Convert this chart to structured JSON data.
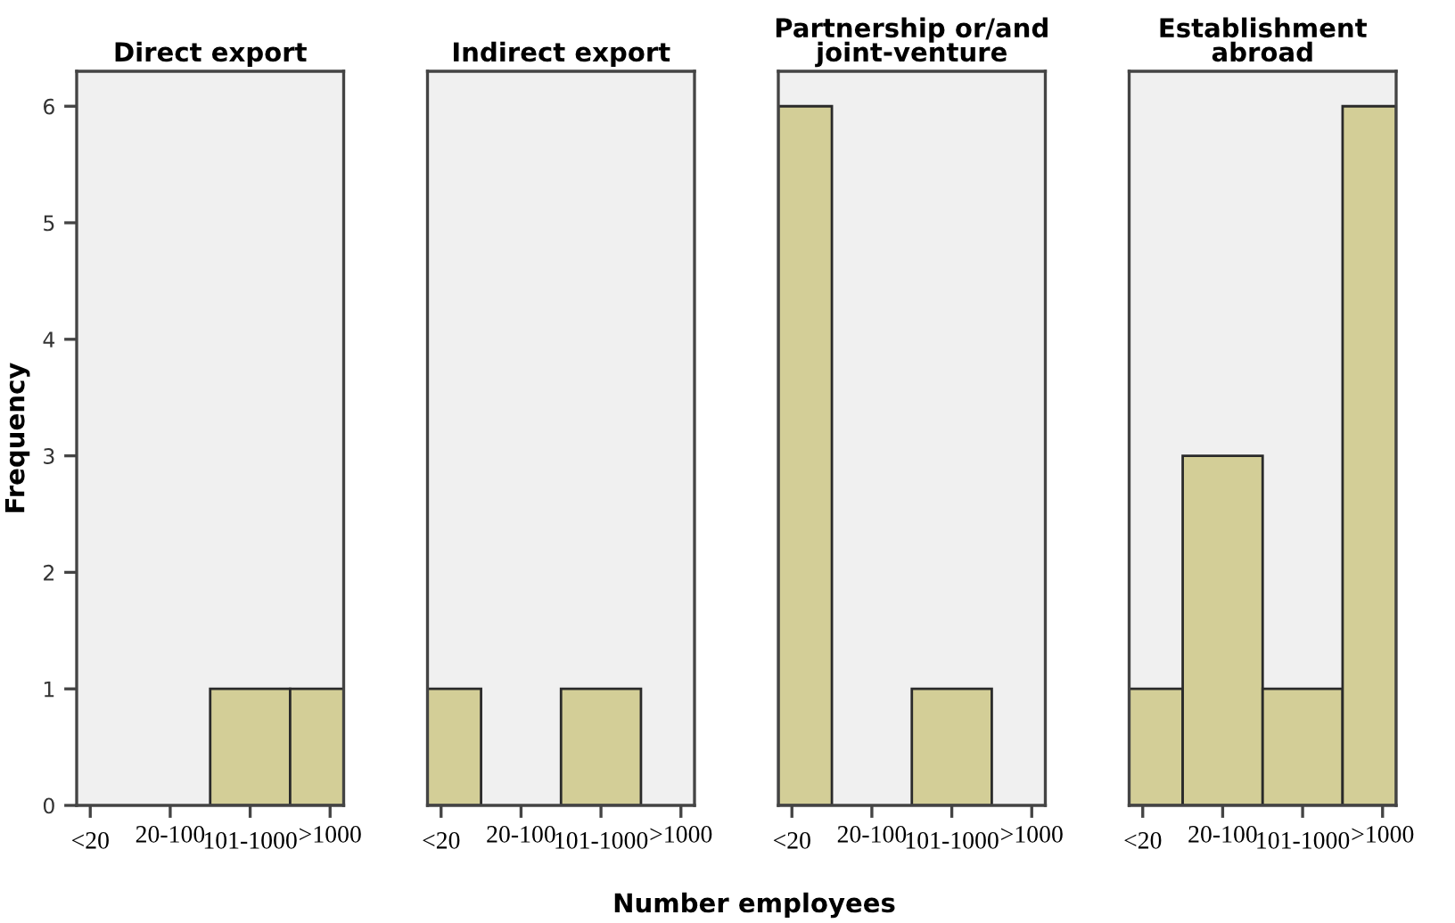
{
  "chart_data": [
    {
      "type": "bar",
      "title": "Direct export",
      "ylabel": "Frequency",
      "categories": [
        "<20",
        "20-100",
        "101-1000",
        ">1000"
      ],
      "values": [
        0,
        0,
        1,
        1
      ],
      "color": "#d3ce97",
      "ylim": [
        0,
        6.3
      ],
      "yticks": [
        0,
        1,
        2,
        3,
        4,
        5,
        6
      ]
    },
    {
      "type": "bar",
      "title": "Indirect export",
      "categories": [
        "<20",
        "20-100",
        "101-1000",
        ">1000"
      ],
      "values": [
        1,
        0,
        1,
        0
      ],
      "color": "#d3ce97",
      "ylim": [
        0,
        6.3
      ],
      "tick_labels": "x"
    },
    {
      "type": "bar",
      "title": "Partnership or/and\njoint-venture",
      "xlabel": "Number employees",
      "categories": [
        "<20",
        "20-100",
        "101-1000",
        ">1000"
      ],
      "values": [
        6,
        0,
        1,
        0
      ],
      "color": "#d3ce97",
      "ylim": [
        0,
        6.3
      ],
      "tick_labels": "x"
    },
    {
      "type": "bar",
      "title": "Establishment\nabroad",
      "categories": [
        "<20",
        "20-100",
        "101-1000",
        ">1000"
      ],
      "values": [
        1,
        3,
        1,
        6
      ],
      "color": "#d3ce97",
      "ylim": [
        0,
        6.3
      ],
      "tick_labels": "x"
    }
  ]
}
